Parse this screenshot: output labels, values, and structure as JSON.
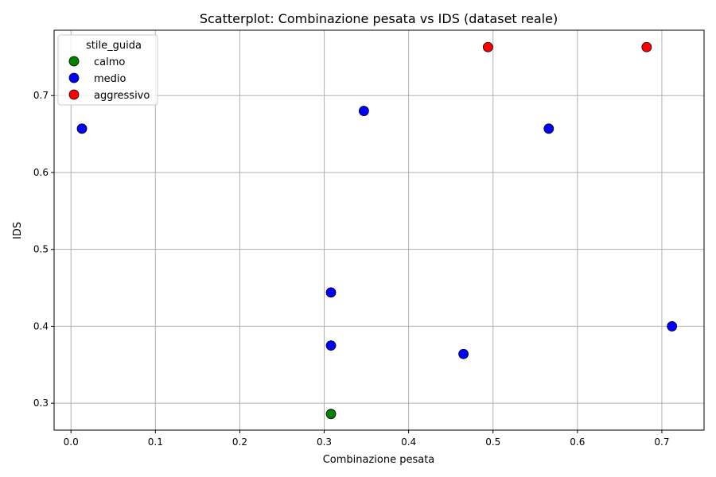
{
  "chart_data": {
    "type": "scatter",
    "title": "Scatterplot: Combinazione pesata vs IDS (dataset reale)",
    "xlabel": "Combinazione pesata",
    "ylabel": "IDS",
    "xlim": [
      -0.02,
      0.75
    ],
    "ylim": [
      0.265,
      0.785
    ],
    "xticks": [
      0.0,
      0.1,
      0.2,
      0.3,
      0.4,
      0.5,
      0.6,
      0.7
    ],
    "yticks": [
      0.3,
      0.4,
      0.5,
      0.6,
      0.7
    ],
    "xtick_labels": [
      "0.0",
      "0.1",
      "0.2",
      "0.3",
      "0.4",
      "0.5",
      "0.6",
      "0.7"
    ],
    "ytick_labels": [
      "0.3",
      "0.4",
      "0.5",
      "0.6",
      "0.7"
    ],
    "grid": true,
    "legend": {
      "title": "stile_guida",
      "placement": "top-left"
    },
    "series": [
      {
        "name": "calmo",
        "color": "#008000",
        "points": [
          {
            "x": 0.308,
            "y": 0.286
          }
        ]
      },
      {
        "name": "medio",
        "color": "#0000ff",
        "points": [
          {
            "x": 0.013,
            "y": 0.657
          },
          {
            "x": 0.347,
            "y": 0.68
          },
          {
            "x": 0.566,
            "y": 0.657
          },
          {
            "x": 0.308,
            "y": 0.444
          },
          {
            "x": 0.308,
            "y": 0.375
          },
          {
            "x": 0.465,
            "y": 0.364
          },
          {
            "x": 0.712,
            "y": 0.4
          }
        ]
      },
      {
        "name": "aggressivo",
        "color": "#ff0000",
        "points": [
          {
            "x": 0.494,
            "y": 0.763
          },
          {
            "x": 0.682,
            "y": 0.763
          }
        ]
      }
    ]
  }
}
